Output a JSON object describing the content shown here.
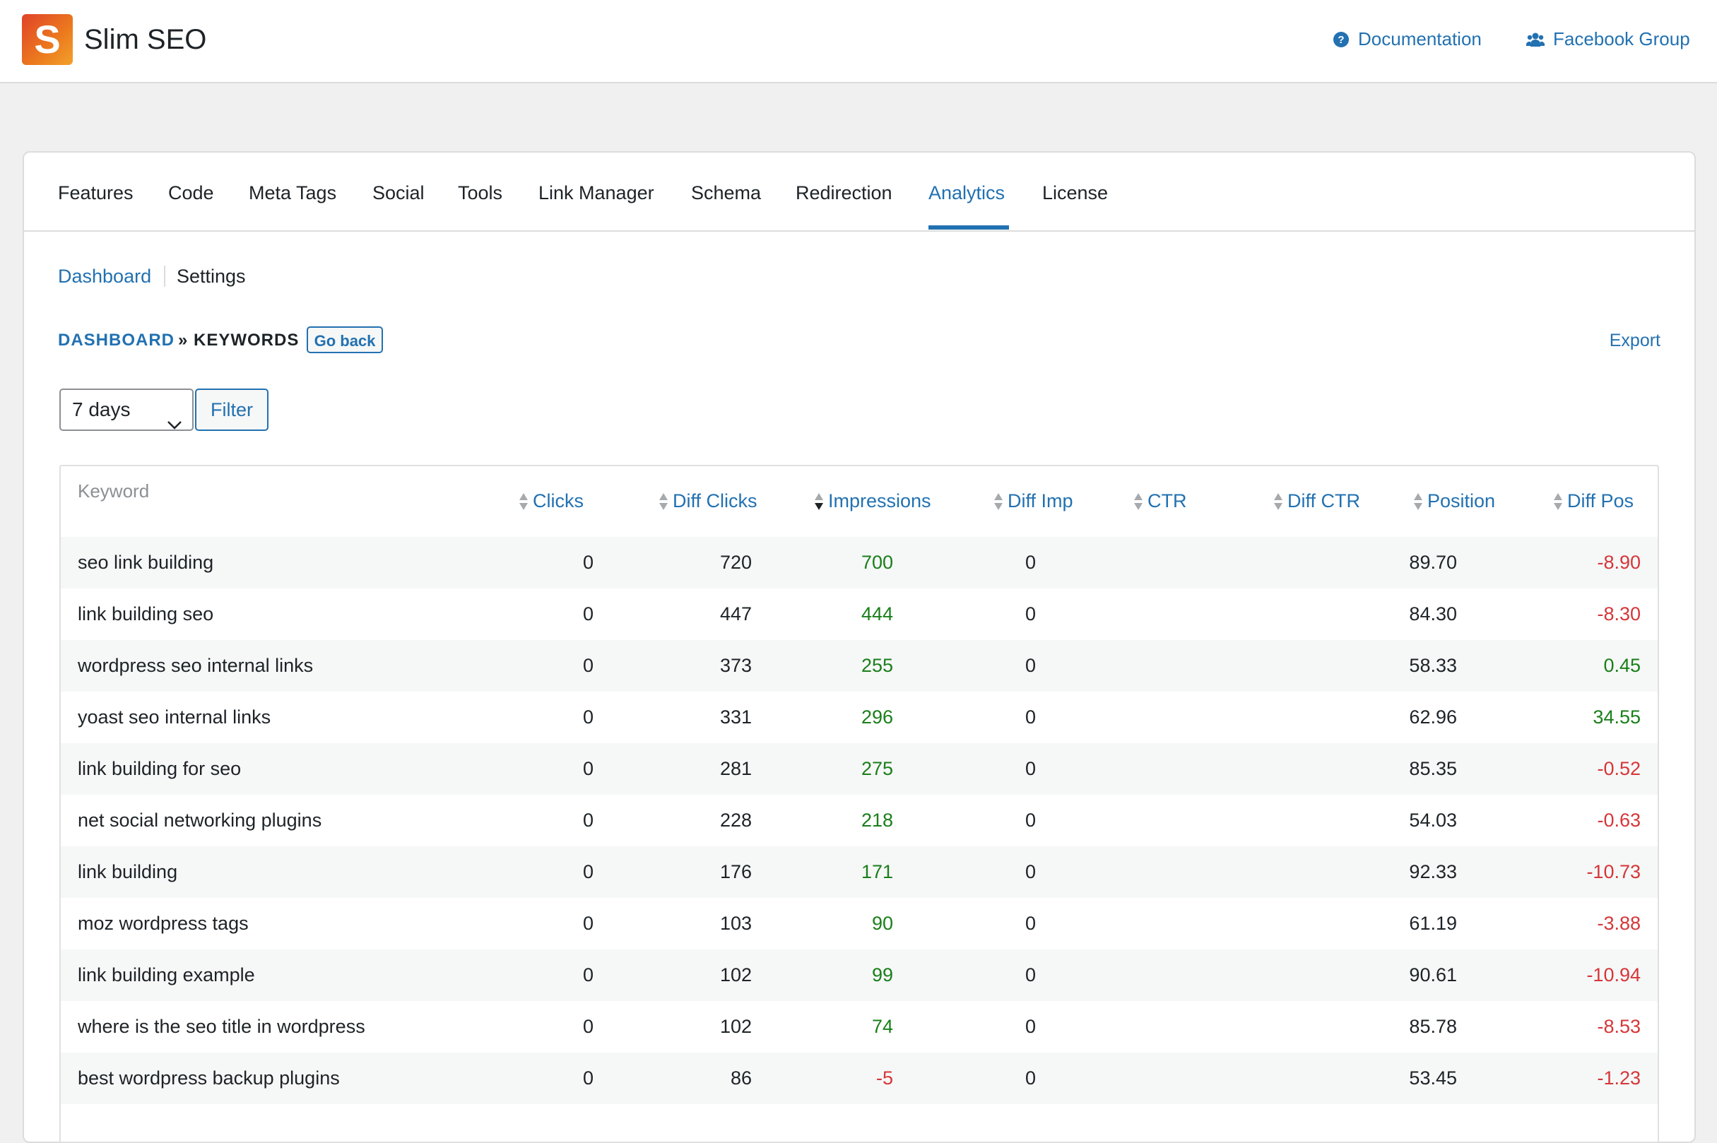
{
  "app": {
    "name": "Slim SEO",
    "logo_letter": "S",
    "brand_colors": [
      "#e0422a",
      "#f2a12b"
    ]
  },
  "top_links": [
    {
      "label": "Documentation",
      "icon": "question-circle-icon"
    },
    {
      "label": "Facebook Group",
      "icon": "users-icon"
    }
  ],
  "tabs": [
    "Features",
    "Code",
    "Meta Tags",
    "Social",
    "Tools",
    "Link Manager",
    "Schema",
    "Redirection",
    "Analytics",
    "License"
  ],
  "active_tab": "Analytics",
  "subnav": {
    "dashboard": "Dashboard",
    "settings": "Settings"
  },
  "breadcrumb": {
    "root": "DASHBOARD",
    "separator": "»",
    "current": "KEYWORDS",
    "go_back": "Go back"
  },
  "export_label": "Export",
  "range": {
    "selected": "7 days",
    "filter_label": "Filter"
  },
  "table": {
    "columns": [
      "Keyword",
      "Clicks",
      "Diff Clicks",
      "Impressions",
      "Diff Imp",
      "CTR",
      "Diff CTR",
      "Position",
      "Diff Pos"
    ],
    "sorted_column": "Impressions",
    "rows": [
      {
        "keyword": "seo link building",
        "clicks": "0",
        "impressions": "720",
        "diff_imp": "700",
        "ctr": "0",
        "position": "89.70",
        "diff_pos": "-8.90"
      },
      {
        "keyword": "link building seo",
        "clicks": "0",
        "impressions": "447",
        "diff_imp": "444",
        "ctr": "0",
        "position": "84.30",
        "diff_pos": "-8.30"
      },
      {
        "keyword": "wordpress seo internal links",
        "clicks": "0",
        "impressions": "373",
        "diff_imp": "255",
        "ctr": "0",
        "position": "58.33",
        "diff_pos": "0.45"
      },
      {
        "keyword": "yoast seo internal links",
        "clicks": "0",
        "impressions": "331",
        "diff_imp": "296",
        "ctr": "0",
        "position": "62.96",
        "diff_pos": "34.55"
      },
      {
        "keyword": "link building for seo",
        "clicks": "0",
        "impressions": "281",
        "diff_imp": "275",
        "ctr": "0",
        "position": "85.35",
        "diff_pos": "-0.52"
      },
      {
        "keyword": "net social networking plugins",
        "clicks": "0",
        "impressions": "228",
        "diff_imp": "218",
        "ctr": "0",
        "position": "54.03",
        "diff_pos": "-0.63"
      },
      {
        "keyword": "link building",
        "clicks": "0",
        "impressions": "176",
        "diff_imp": "171",
        "ctr": "0",
        "position": "92.33",
        "diff_pos": "-10.73"
      },
      {
        "keyword": "moz wordpress tags",
        "clicks": "0",
        "impressions": "103",
        "diff_imp": "90",
        "ctr": "0",
        "position": "61.19",
        "diff_pos": "-3.88"
      },
      {
        "keyword": "link building example",
        "clicks": "0",
        "impressions": "102",
        "diff_imp": "99",
        "ctr": "0",
        "position": "90.61",
        "diff_pos": "-10.94"
      },
      {
        "keyword": "where is the seo title in wordpress",
        "clicks": "0",
        "impressions": "102",
        "diff_imp": "74",
        "ctr": "0",
        "position": "85.78",
        "diff_pos": "-8.53"
      },
      {
        "keyword": "best wordpress backup plugins",
        "clicks": "0",
        "impressions": "86",
        "diff_imp": "-5",
        "ctr": "0",
        "position": "53.45",
        "diff_pos": "-1.23"
      }
    ]
  },
  "colors": {
    "link": "#2271b1",
    "positive": "#1a7f1a",
    "negative": "#d63638"
  }
}
